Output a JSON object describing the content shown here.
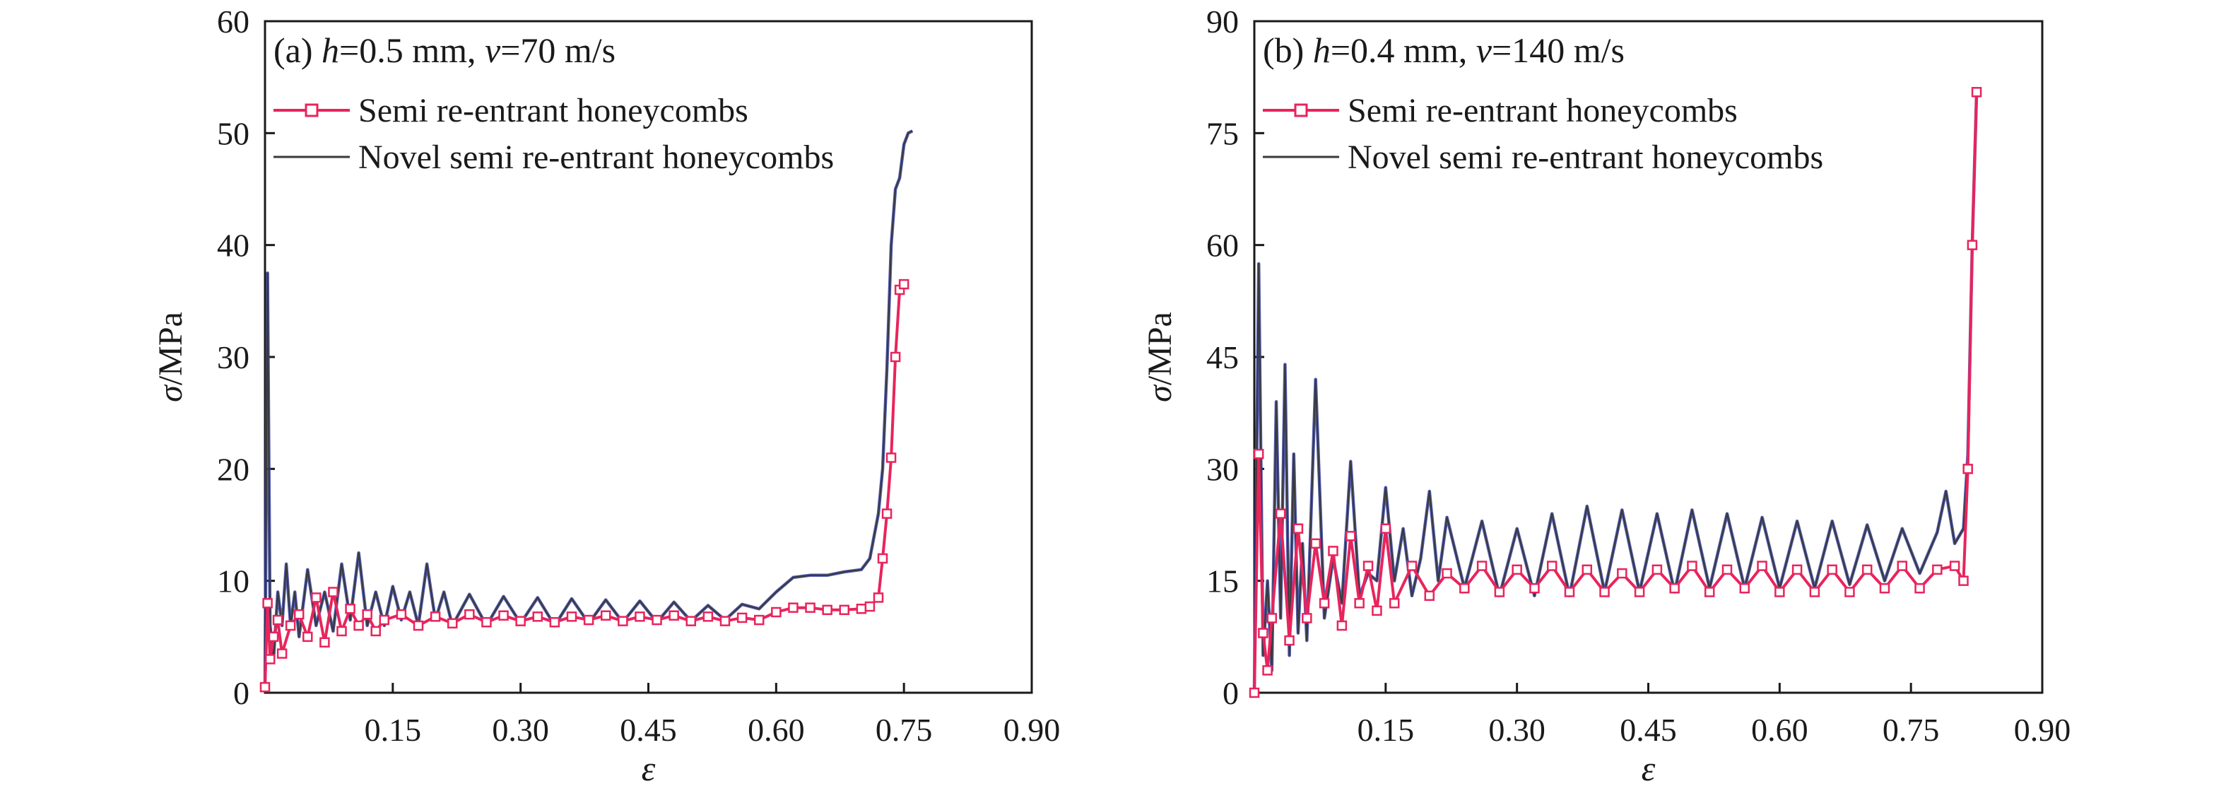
{
  "chart_data": [
    {
      "type": "line",
      "panel": "a",
      "title_parts": [
        "(a) ",
        "h",
        "=0.5 mm, ",
        "v",
        "=70 m/s"
      ],
      "xlabel": "ε",
      "ylabel_parts": [
        "σ",
        "/MPa"
      ],
      "xlim": [
        0,
        0.9
      ],
      "ylim": [
        0,
        60
      ],
      "xticks": [
        0.15,
        0.3,
        0.45,
        0.6,
        0.75,
        0.9
      ],
      "xtick_labels": [
        "0.15",
        "0.30",
        "0.45",
        "0.60",
        "0.75",
        "0.90"
      ],
      "yticks": [
        0,
        10,
        20,
        30,
        40,
        50,
        60
      ],
      "ytick_labels": [
        "0",
        "10",
        "20",
        "30",
        "40",
        "50",
        "60"
      ],
      "legend_position": "top-left",
      "series": [
        {
          "name": "Semi re-entrant honeycombs",
          "color": "#e8245c",
          "marker": "square",
          "x": [
            0.0,
            0.003,
            0.006,
            0.01,
            0.015,
            0.02,
            0.03,
            0.04,
            0.05,
            0.06,
            0.07,
            0.08,
            0.09,
            0.1,
            0.11,
            0.12,
            0.13,
            0.14,
            0.16,
            0.18,
            0.2,
            0.22,
            0.24,
            0.26,
            0.28,
            0.3,
            0.32,
            0.34,
            0.36,
            0.38,
            0.4,
            0.42,
            0.44,
            0.46,
            0.48,
            0.5,
            0.52,
            0.54,
            0.56,
            0.58,
            0.6,
            0.62,
            0.64,
            0.66,
            0.68,
            0.7,
            0.71,
            0.72,
            0.725,
            0.73,
            0.735,
            0.74,
            0.745,
            0.75
          ],
          "values": [
            0.5,
            8,
            3,
            5,
            6.5,
            3.5,
            6,
            7,
            5,
            8.5,
            4.5,
            9,
            5.5,
            7.5,
            6,
            7,
            5.5,
            6.5,
            7,
            6,
            6.8,
            6.2,
            7,
            6.3,
            6.9,
            6.4,
            6.8,
            6.3,
            6.8,
            6.5,
            6.9,
            6.4,
            6.8,
            6.5,
            6.9,
            6.4,
            6.8,
            6.4,
            6.7,
            6.5,
            7.2,
            7.6,
            7.6,
            7.4,
            7.4,
            7.5,
            7.7,
            8.5,
            12,
            16,
            21,
            30,
            36,
            36.5
          ]
        },
        {
          "name": "Novel semi re-entrant honeycombs",
          "color": "#3a3a3a",
          "highlight_color": "#3440a8",
          "marker": "none",
          "x": [
            0.0,
            0.003,
            0.006,
            0.01,
            0.015,
            0.02,
            0.025,
            0.03,
            0.035,
            0.04,
            0.05,
            0.06,
            0.07,
            0.08,
            0.09,
            0.1,
            0.11,
            0.12,
            0.13,
            0.14,
            0.15,
            0.16,
            0.17,
            0.18,
            0.19,
            0.2,
            0.21,
            0.22,
            0.24,
            0.26,
            0.28,
            0.3,
            0.32,
            0.34,
            0.36,
            0.38,
            0.4,
            0.42,
            0.44,
            0.46,
            0.48,
            0.5,
            0.52,
            0.54,
            0.56,
            0.58,
            0.6,
            0.62,
            0.64,
            0.66,
            0.68,
            0.7,
            0.71,
            0.72,
            0.725,
            0.73,
            0.735,
            0.74,
            0.745,
            0.75,
            0.755,
            0.76
          ],
          "values": [
            0.5,
            37.5,
            6,
            3,
            9,
            6,
            11.5,
            6,
            9,
            5,
            11,
            6,
            9,
            5.5,
            11.5,
            6.5,
            12.5,
            6,
            9,
            6,
            9.5,
            6.5,
            9,
            6,
            11.5,
            6.5,
            9,
            6,
            8.8,
            6,
            8.6,
            6.2,
            8.5,
            6,
            8.4,
            6.2,
            8.3,
            6.3,
            8.2,
            6.3,
            8.1,
            6.4,
            7.8,
            6.5,
            7.9,
            7.5,
            9,
            10.3,
            10.5,
            10.5,
            10.8,
            11,
            12,
            16,
            20,
            29,
            40,
            45,
            46,
            49,
            50,
            50.2
          ]
        }
      ]
    },
    {
      "type": "line",
      "panel": "b",
      "title_parts": [
        "(b) ",
        "h",
        "=0.4 mm, ",
        "v",
        "=140 m/s"
      ],
      "xlabel": "ε",
      "ylabel_parts": [
        "σ",
        "/MPa"
      ],
      "xlim": [
        0,
        0.9
      ],
      "ylim": [
        0,
        90
      ],
      "xticks": [
        0.15,
        0.3,
        0.45,
        0.6,
        0.75,
        0.9
      ],
      "xtick_labels": [
        "0.15",
        "0.30",
        "0.45",
        "0.60",
        "0.75",
        "0.90"
      ],
      "yticks": [
        0,
        15,
        30,
        45,
        60,
        75,
        90
      ],
      "ytick_labels": [
        "0",
        "15",
        "30",
        "45",
        "60",
        "75",
        "90"
      ],
      "legend_position": "top-left",
      "series": [
        {
          "name": "Semi re-entrant honeycombs",
          "color": "#e8245c",
          "marker": "square",
          "x": [
            0.0,
            0.005,
            0.01,
            0.015,
            0.02,
            0.03,
            0.04,
            0.05,
            0.06,
            0.07,
            0.08,
            0.09,
            0.1,
            0.11,
            0.12,
            0.13,
            0.14,
            0.15,
            0.16,
            0.18,
            0.2,
            0.22,
            0.24,
            0.26,
            0.28,
            0.3,
            0.32,
            0.34,
            0.36,
            0.38,
            0.4,
            0.42,
            0.44,
            0.46,
            0.48,
            0.5,
            0.52,
            0.54,
            0.56,
            0.58,
            0.6,
            0.62,
            0.64,
            0.66,
            0.68,
            0.7,
            0.72,
            0.74,
            0.76,
            0.78,
            0.8,
            0.81,
            0.815,
            0.82,
            0.825
          ],
          "values": [
            0,
            32,
            8,
            3,
            10,
            24,
            7,
            22,
            10,
            20,
            12,
            19,
            9,
            21,
            12,
            17,
            11,
            22,
            12,
            17,
            13,
            16,
            14,
            17,
            13.5,
            16.5,
            14,
            17,
            13.5,
            16.5,
            13.5,
            16,
            13.5,
            16.5,
            14,
            17,
            13.5,
            16.5,
            14,
            17,
            13.5,
            16.5,
            13.5,
            16.5,
            13.5,
            16.5,
            14,
            17,
            14,
            16.5,
            17,
            15,
            30,
            60,
            80.5
          ]
        },
        {
          "name": "Novel semi re-entrant honeycombs",
          "color": "#3a3a3a",
          "highlight_color": "#3440a8",
          "marker": "none",
          "x": [
            0.0,
            0.005,
            0.01,
            0.015,
            0.02,
            0.025,
            0.03,
            0.035,
            0.04,
            0.045,
            0.05,
            0.055,
            0.06,
            0.07,
            0.08,
            0.09,
            0.1,
            0.11,
            0.12,
            0.13,
            0.14,
            0.15,
            0.16,
            0.17,
            0.18,
            0.19,
            0.2,
            0.21,
            0.22,
            0.24,
            0.26,
            0.28,
            0.3,
            0.32,
            0.34,
            0.36,
            0.38,
            0.4,
            0.42,
            0.44,
            0.46,
            0.48,
            0.5,
            0.52,
            0.54,
            0.56,
            0.58,
            0.6,
            0.62,
            0.64,
            0.66,
            0.68,
            0.7,
            0.72,
            0.74,
            0.76,
            0.78,
            0.79,
            0.8,
            0.81,
            0.815,
            0.82,
            0.825
          ],
          "values": [
            0,
            57.5,
            5,
            15,
            3,
            39,
            10,
            44,
            5,
            32,
            8,
            20,
            7,
            42,
            10,
            18,
            12,
            31,
            13,
            16,
            15,
            27.5,
            15,
            22,
            13,
            18,
            27,
            15,
            23.5,
            14,
            23,
            13,
            22,
            13,
            24,
            13,
            25,
            13.5,
            24.5,
            13.5,
            24,
            13.5,
            24.5,
            14,
            24,
            14,
            23.5,
            14,
            23,
            14,
            23,
            14.5,
            22.5,
            15,
            22,
            16,
            21.5,
            27,
            20,
            22,
            32,
            60,
            80.5
          ]
        }
      ]
    }
  ]
}
